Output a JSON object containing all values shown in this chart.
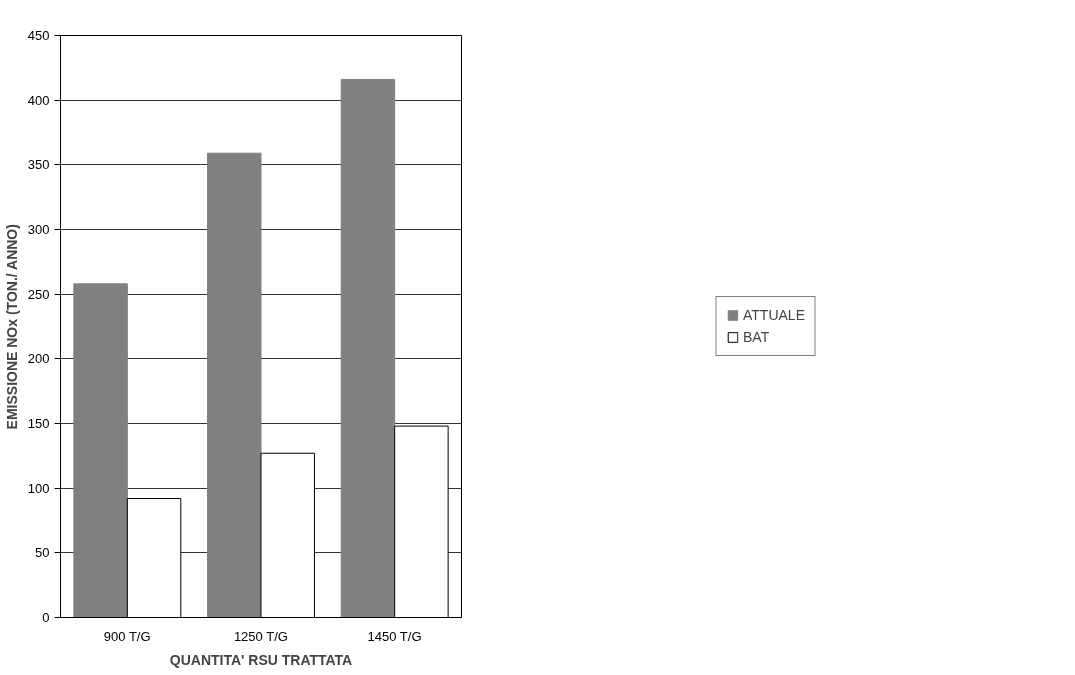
{
  "chart_data": {
    "type": "bar",
    "xlabel": "QUANTITA' RSU TRATTATA",
    "ylabel": "EMISSIONE NOx (TON./ ANNO)",
    "categories": [
      "900 T/G",
      "1250 T/G",
      "1450 T/G"
    ],
    "series": [
      {
        "name": "ATTUALE",
        "color": "#808080",
        "values": [
          258,
          359,
          416
        ]
      },
      {
        "name": "BAT",
        "color": "#ffffff",
        "values": [
          92,
          127,
          148
        ]
      }
    ],
    "ylim": [
      0,
      450
    ],
    "yticks": [
      0,
      50,
      100,
      150,
      200,
      250,
      300,
      350,
      400,
      450
    ],
    "grid": "y",
    "legend": "right"
  }
}
